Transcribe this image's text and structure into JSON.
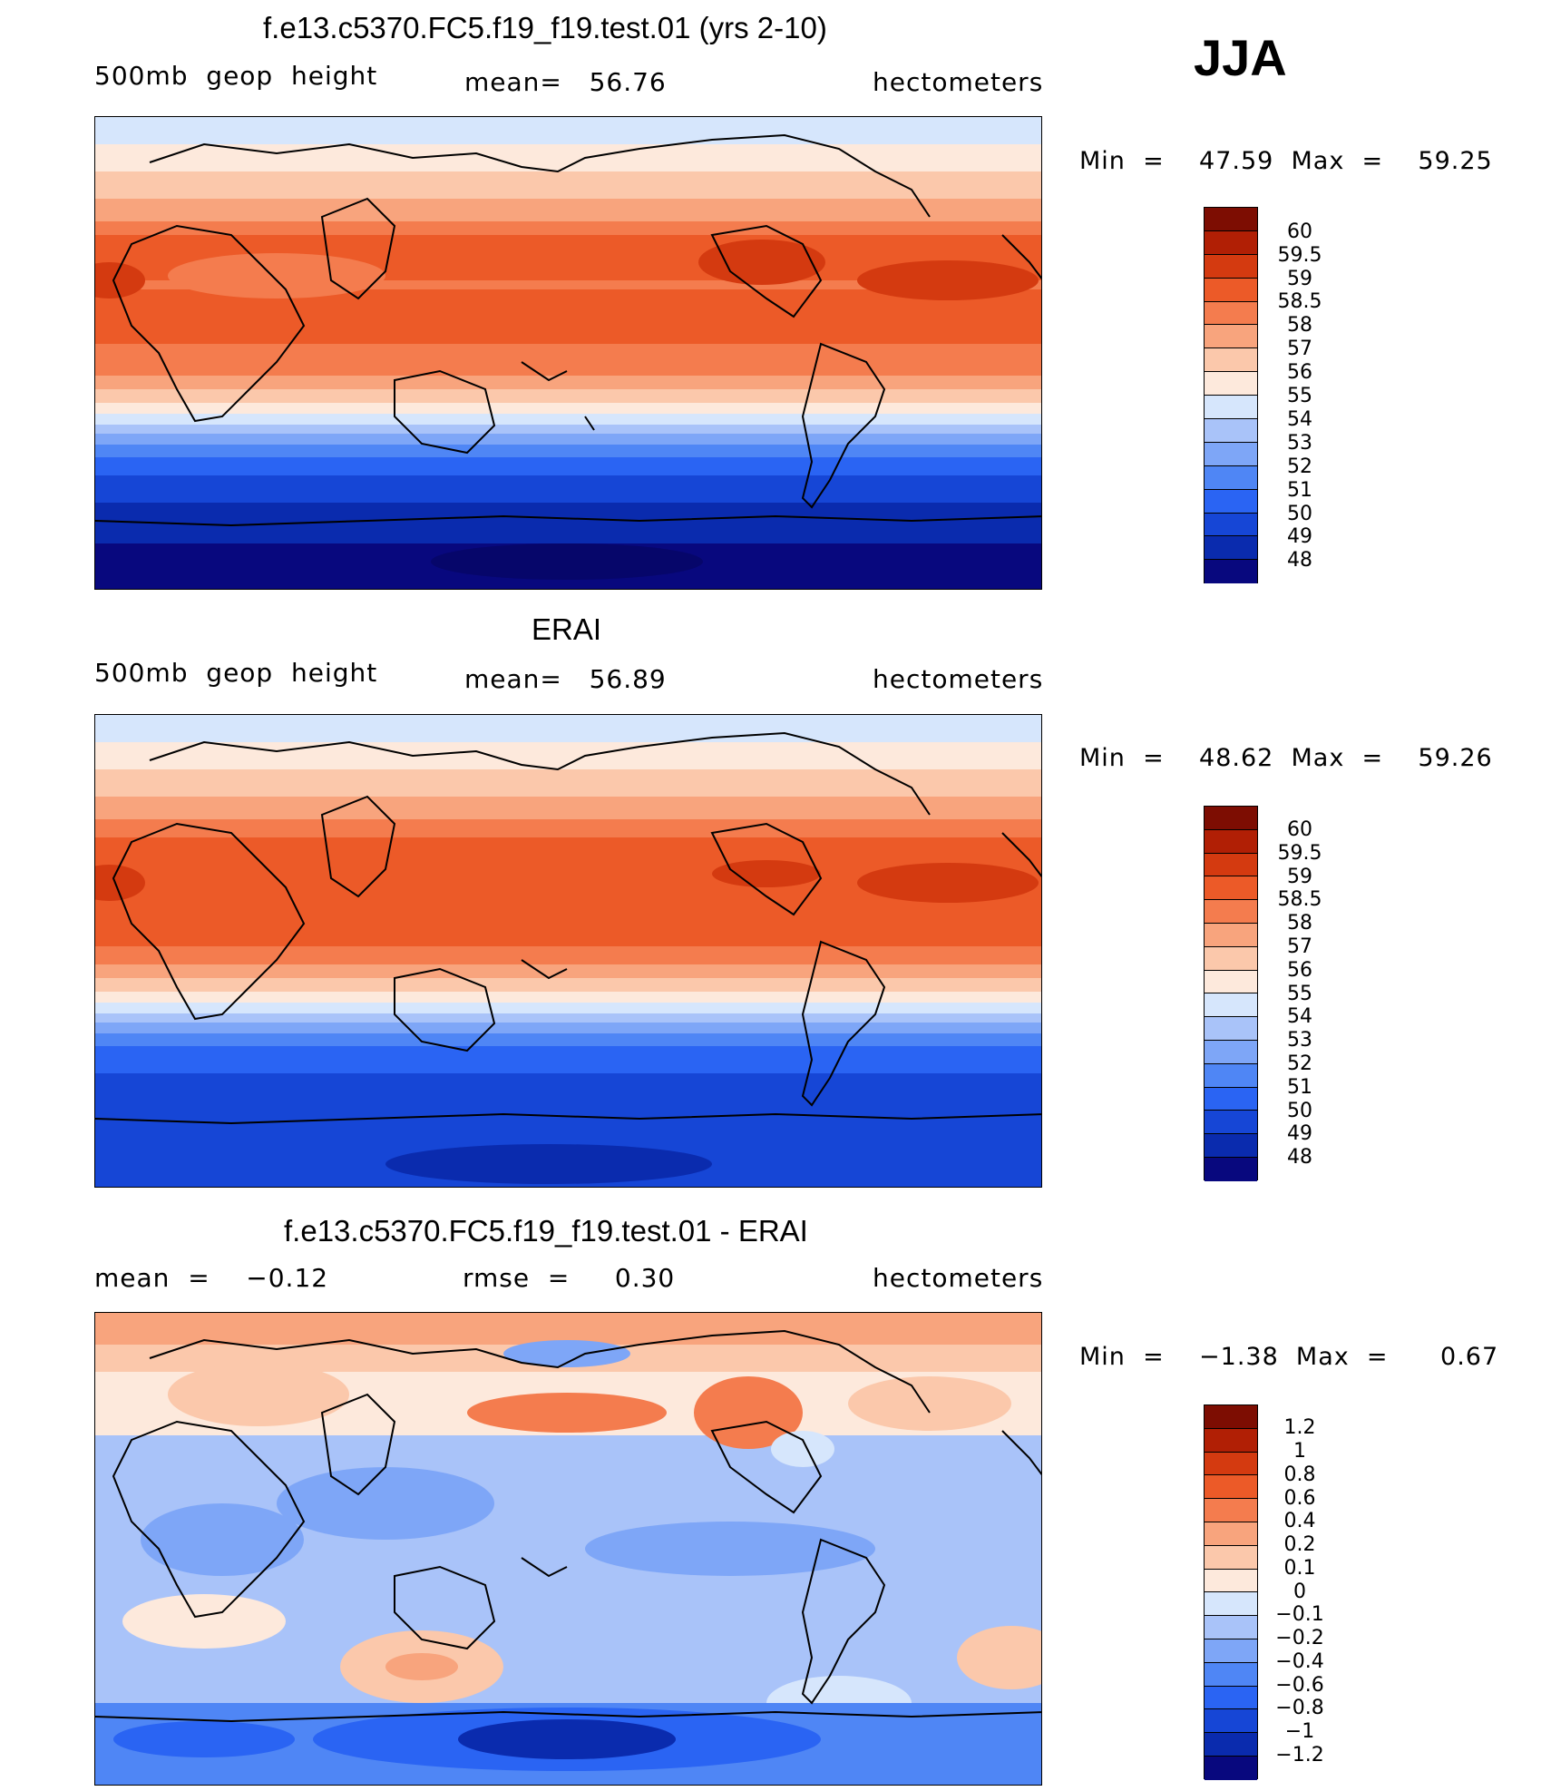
{
  "season": "JJA",
  "palettes": {
    "abs": [
      "#08087e",
      "#0a2bae",
      "#1646d6",
      "#2a64f3",
      "#4f86f5",
      "#7ea6f7",
      "#a9c3f9",
      "#d6e6fc",
      "#fde9dc",
      "#fbc8ab",
      "#f8a47d",
      "#f47c4e",
      "#ec5a28",
      "#d43a10",
      "#b11f05",
      "#7d0d02"
    ],
    "diff": [
      "#08087e",
      "#0a2bae",
      "#1646d6",
      "#2a64f3",
      "#4f86f5",
      "#7ea6f7",
      "#a9c3f9",
      "#d6e6fc",
      "#fde9dc",
      "#fbc8ab",
      "#f8a47d",
      "#f47c4e",
      "#ec5a28",
      "#d43a10",
      "#b11f05",
      "#7d0d02"
    ]
  },
  "panels": [
    {
      "title": "f.e13.c5370.FC5.f19_f19.test.01 (yrs 2-10)",
      "left_label": "500mb  geop  height",
      "center_label": "mean=   56.76",
      "right_label": "hectometers",
      "min_max": "Min  =    47.59  Max  =    59.25",
      "colorbar_labels": [
        "60",
        "59.5",
        "59",
        "58.5",
        "58",
        "57",
        "56",
        "55",
        "54",
        "53",
        "52",
        "51",
        "50",
        "49",
        "48"
      ],
      "map_name": "model-geopotential-map"
    },
    {
      "title": "ERAI",
      "left_label": "500mb  geop  height",
      "center_label": "mean=   56.89",
      "right_label": "hectometers",
      "min_max": "Min  =    48.62  Max  =    59.26",
      "colorbar_labels": [
        "60",
        "59.5",
        "59",
        "58.5",
        "58",
        "57",
        "56",
        "55",
        "54",
        "53",
        "52",
        "51",
        "50",
        "49",
        "48"
      ],
      "map_name": "erai-geopotential-map"
    },
    {
      "title": "f.e13.c5370.FC5.f19_f19.test.01 - ERAI",
      "left_label": "mean  =    −0.12",
      "center_label": "rmse  =     0.30",
      "right_label": "hectometers",
      "min_max": "Min  =    −1.38  Max  =      0.67",
      "colorbar_labels": [
        "1.2",
        "1",
        "0.8",
        "0.6",
        "0.4",
        "0.2",
        "0.1",
        "0",
        "−0.1",
        "−0.2",
        "−0.4",
        "−0.6",
        "−0.8",
        "−1",
        "−1.2"
      ],
      "map_name": "difference-map"
    }
  ]
}
